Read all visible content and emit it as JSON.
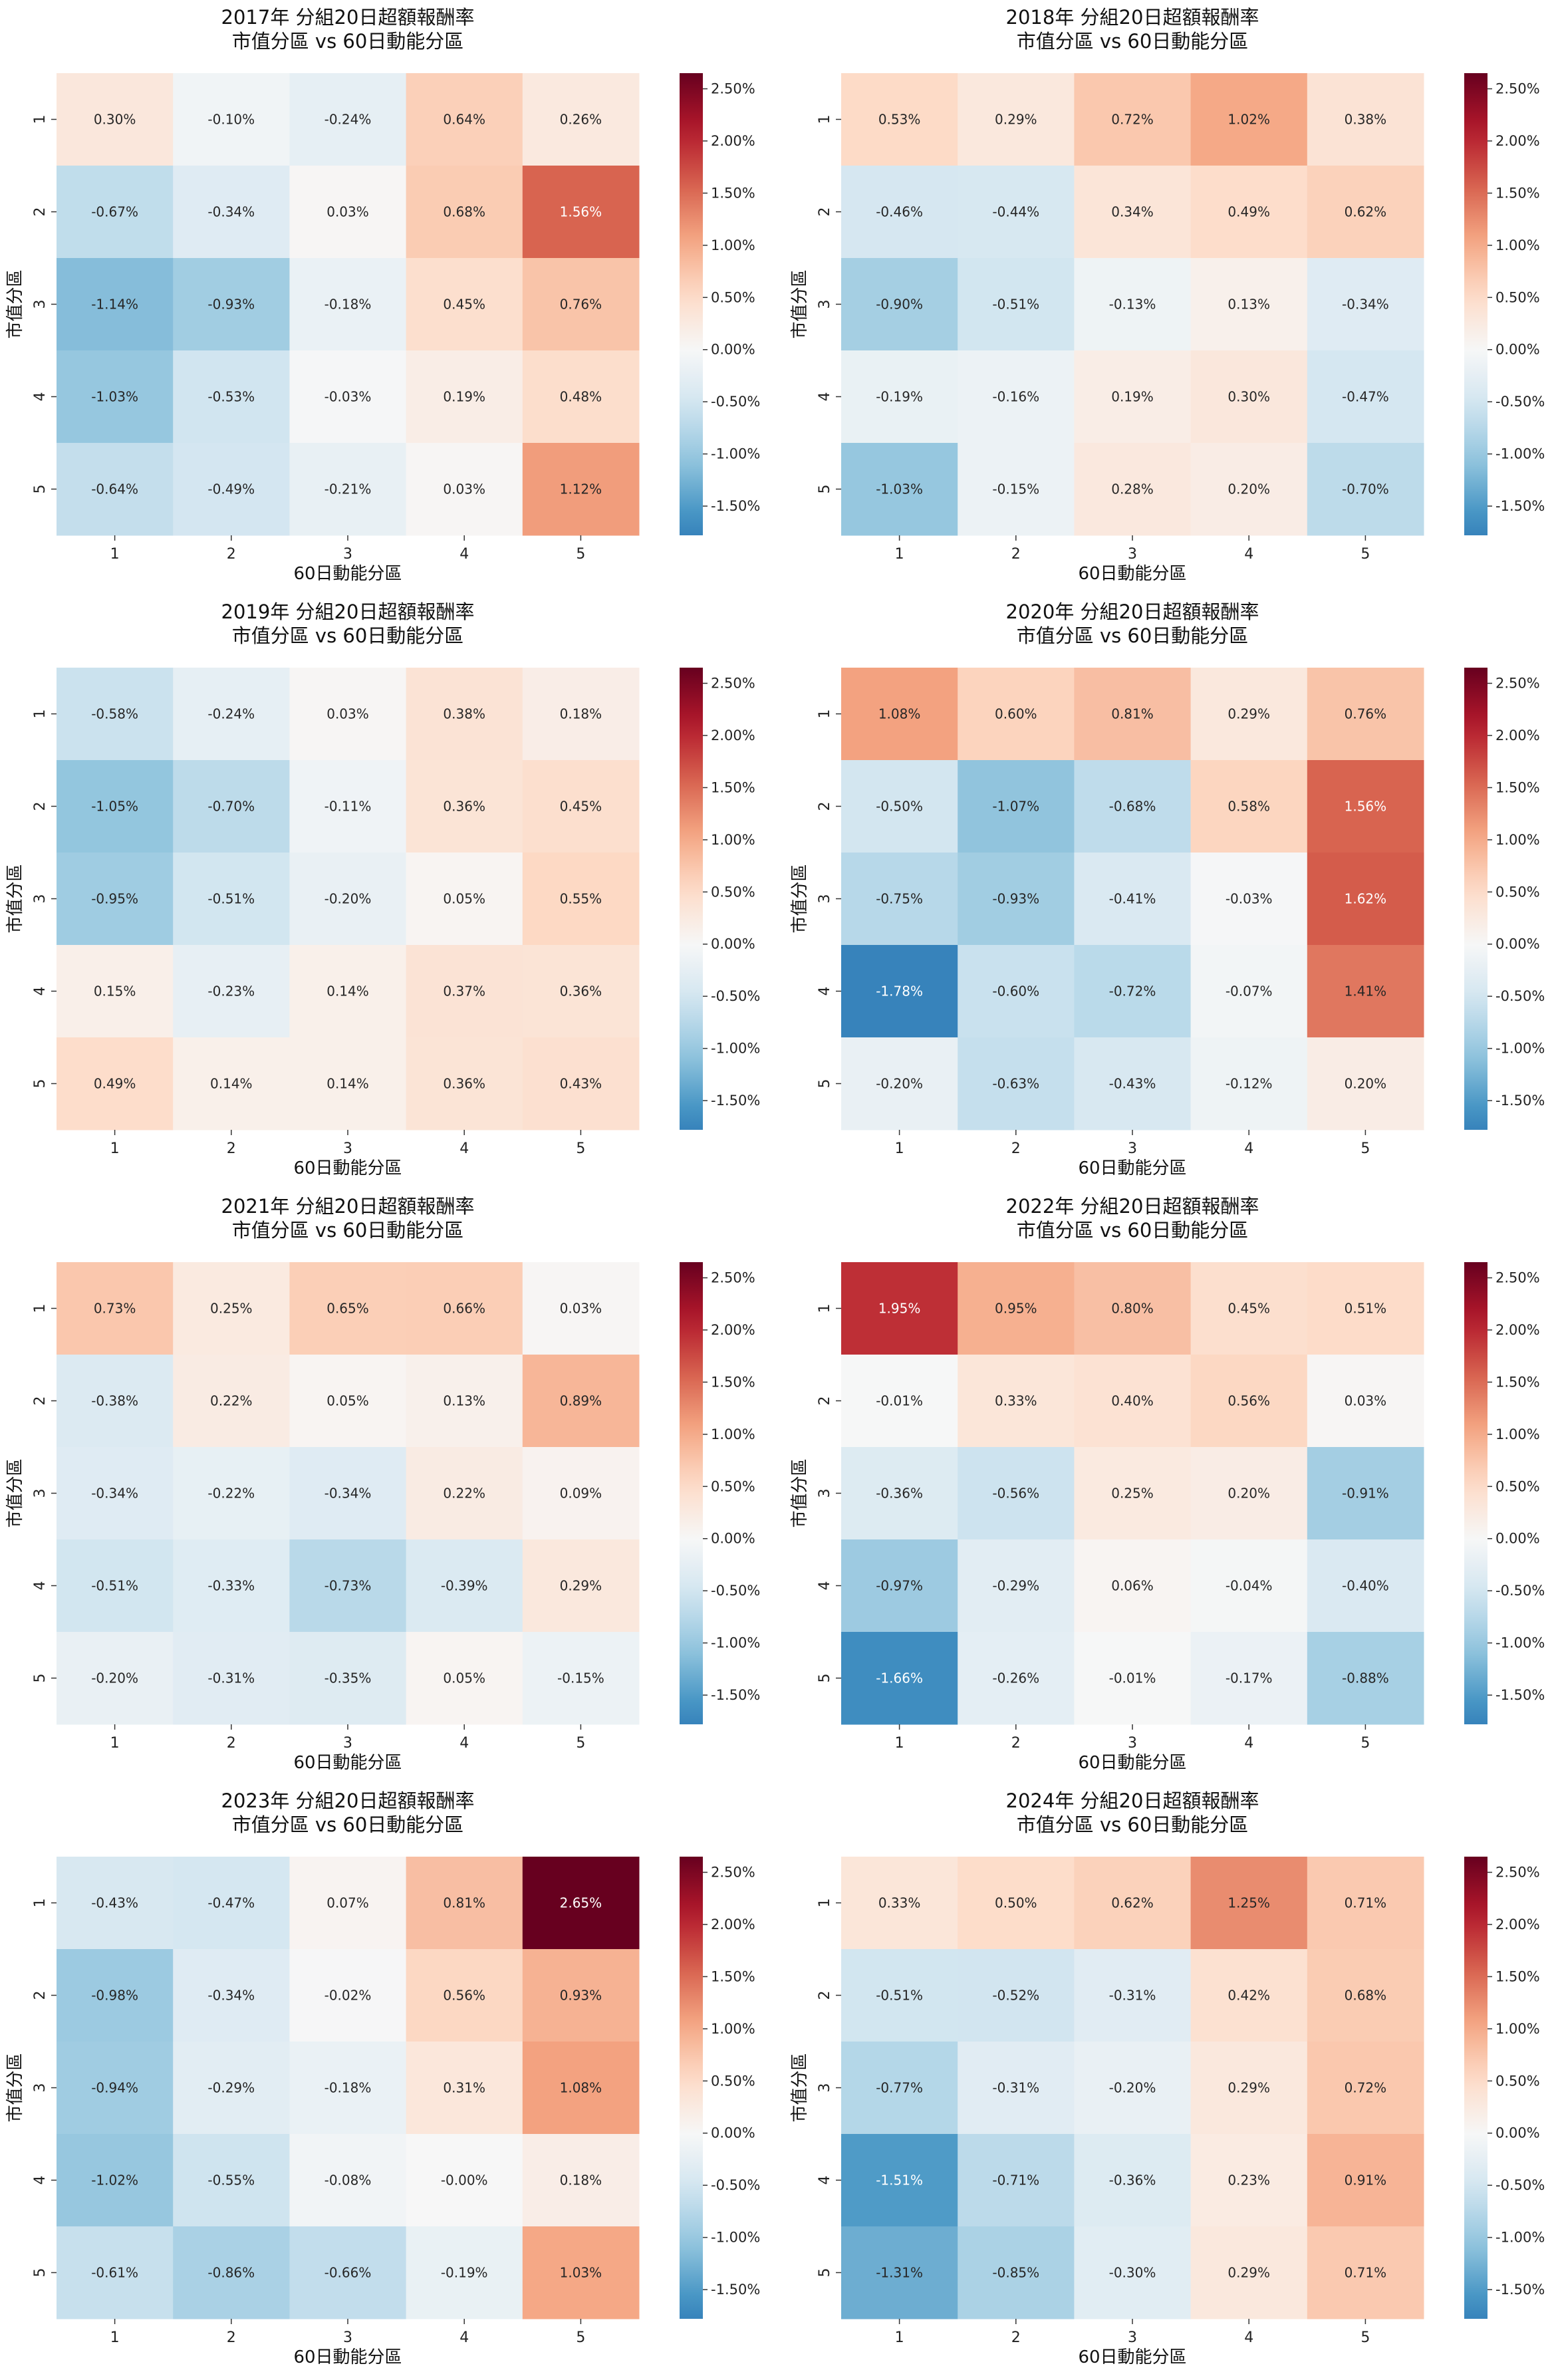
{
  "figure": {
    "xlabel": "60日動能分區",
    "ylabel": "市值分區",
    "x_ticks": [
      "1",
      "2",
      "3",
      "4",
      "5"
    ],
    "y_ticks": [
      "1",
      "2",
      "3",
      "4",
      "5"
    ],
    "colorbar": {
      "cmap": "RdBu_r",
      "vmin": -1.78,
      "vmax": 2.65,
      "center": 0,
      "ticks": [
        2.5,
        2.0,
        1.5,
        1.0,
        0.5,
        0.0,
        -0.5,
        -1.0,
        -1.5
      ],
      "tick_labels": [
        "2.50%",
        "2.00%",
        "1.50%",
        "1.00%",
        "0.50%",
        "0.00%",
        "-0.50%",
        "-1.00%",
        "-1.50%"
      ]
    }
  },
  "chart_data": [
    {
      "type": "heatmap",
      "title": "2017年 分組20日超額報酬率",
      "subtitle": "市值分區 vs 60日動能分區",
      "values": [
        [
          0.3,
          -0.1,
          -0.24,
          0.64,
          0.26
        ],
        [
          -0.67,
          -0.34,
          0.03,
          0.68,
          1.56
        ],
        [
          -1.14,
          -0.93,
          -0.18,
          0.45,
          0.76
        ],
        [
          -1.03,
          -0.53,
          -0.03,
          0.19,
          0.48
        ],
        [
          -0.64,
          -0.49,
          -0.21,
          0.03,
          1.12
        ]
      ],
      "labels": [
        [
          "0.30%",
          "-0.10%",
          "-0.24%",
          "0.64%",
          "0.26%"
        ],
        [
          "-0.67%",
          "-0.34%",
          "0.03%",
          "0.68%",
          "1.56%"
        ],
        [
          "-1.14%",
          "-0.93%",
          "-0.18%",
          "0.45%",
          "0.76%"
        ],
        [
          "-1.03%",
          "-0.53%",
          "-0.03%",
          "0.19%",
          "0.48%"
        ],
        [
          "-0.64%",
          "-0.49%",
          "-0.21%",
          "0.03%",
          "1.12%"
        ]
      ]
    },
    {
      "type": "heatmap",
      "title": "2018年 分組20日超額報酬率",
      "subtitle": "市值分區 vs 60日動能分區",
      "values": [
        [
          0.53,
          0.29,
          0.72,
          1.02,
          0.38
        ],
        [
          -0.46,
          -0.44,
          0.34,
          0.49,
          0.62
        ],
        [
          -0.9,
          -0.51,
          -0.13,
          0.13,
          -0.34
        ],
        [
          -0.19,
          -0.16,
          0.19,
          0.3,
          -0.47
        ],
        [
          -1.03,
          -0.15,
          0.28,
          0.2,
          -0.7
        ]
      ],
      "labels": [
        [
          "0.53%",
          "0.29%",
          "0.72%",
          "1.02%",
          "0.38%"
        ],
        [
          "-0.46%",
          "-0.44%",
          "0.34%",
          "0.49%",
          "0.62%"
        ],
        [
          "-0.90%",
          "-0.51%",
          "-0.13%",
          "0.13%",
          "-0.34%"
        ],
        [
          "-0.19%",
          "-0.16%",
          "0.19%",
          "0.30%",
          "-0.47%"
        ],
        [
          "-1.03%",
          "-0.15%",
          "0.28%",
          "0.20%",
          "-0.70%"
        ]
      ]
    },
    {
      "type": "heatmap",
      "title": "2019年 分組20日超額報酬率",
      "subtitle": "市值分區 vs 60日動能分區",
      "values": [
        [
          -0.58,
          -0.24,
          0.03,
          0.38,
          0.18
        ],
        [
          -1.05,
          -0.7,
          -0.11,
          0.36,
          0.45
        ],
        [
          -0.95,
          -0.51,
          -0.2,
          0.05,
          0.55
        ],
        [
          0.15,
          -0.23,
          0.14,
          0.37,
          0.36
        ],
        [
          0.49,
          0.14,
          0.14,
          0.36,
          0.43
        ]
      ],
      "labels": [
        [
          "-0.58%",
          "-0.24%",
          "0.03%",
          "0.38%",
          "0.18%"
        ],
        [
          "-1.05%",
          "-0.70%",
          "-0.11%",
          "0.36%",
          "0.45%"
        ],
        [
          "-0.95%",
          "-0.51%",
          "-0.20%",
          "0.05%",
          "0.55%"
        ],
        [
          "0.15%",
          "-0.23%",
          "0.14%",
          "0.37%",
          "0.36%"
        ],
        [
          "0.49%",
          "0.14%",
          "0.14%",
          "0.36%",
          "0.43%"
        ]
      ]
    },
    {
      "type": "heatmap",
      "title": "2020年 分組20日超額報酬率",
      "subtitle": "市值分區 vs 60日動能分區",
      "values": [
        [
          1.08,
          0.6,
          0.81,
          0.29,
          0.76
        ],
        [
          -0.5,
          -1.07,
          -0.68,
          0.58,
          1.56
        ],
        [
          -0.75,
          -0.93,
          -0.41,
          -0.03,
          1.62
        ],
        [
          -1.78,
          -0.6,
          -0.72,
          -0.07,
          1.41
        ],
        [
          -0.2,
          -0.63,
          -0.43,
          -0.12,
          0.2
        ]
      ],
      "labels": [
        [
          "1.08%",
          "0.60%",
          "0.81%",
          "0.29%",
          "0.76%"
        ],
        [
          "-0.50%",
          "-1.07%",
          "-0.68%",
          "0.58%",
          "1.56%"
        ],
        [
          "-0.75%",
          "-0.93%",
          "-0.41%",
          "-0.03%",
          "1.62%"
        ],
        [
          "-1.78%",
          "-0.60%",
          "-0.72%",
          "-0.07%",
          "1.41%"
        ],
        [
          "-0.20%",
          "-0.63%",
          "-0.43%",
          "-0.12%",
          "0.20%"
        ]
      ]
    },
    {
      "type": "heatmap",
      "title": "2021年 分組20日超額報酬率",
      "subtitle": "市值分區 vs 60日動能分區",
      "values": [
        [
          0.73,
          0.25,
          0.65,
          0.66,
          0.03
        ],
        [
          -0.38,
          0.22,
          0.05,
          0.13,
          0.89
        ],
        [
          -0.34,
          -0.22,
          -0.34,
          0.22,
          0.09
        ],
        [
          -0.51,
          -0.33,
          -0.73,
          -0.39,
          0.29
        ],
        [
          -0.2,
          -0.31,
          -0.35,
          0.05,
          -0.15
        ]
      ],
      "labels": [
        [
          "0.73%",
          "0.25%",
          "0.65%",
          "0.66%",
          "0.03%"
        ],
        [
          "-0.38%",
          "0.22%",
          "0.05%",
          "0.13%",
          "0.89%"
        ],
        [
          "-0.34%",
          "-0.22%",
          "-0.34%",
          "0.22%",
          "0.09%"
        ],
        [
          "-0.51%",
          "-0.33%",
          "-0.73%",
          "-0.39%",
          "0.29%"
        ],
        [
          "-0.20%",
          "-0.31%",
          "-0.35%",
          "0.05%",
          "-0.15%"
        ]
      ]
    },
    {
      "type": "heatmap",
      "title": "2022年 分組20日超額報酬率",
      "subtitle": "市值分區 vs 60日動能分區",
      "values": [
        [
          1.95,
          0.95,
          0.8,
          0.45,
          0.51
        ],
        [
          -0.01,
          0.33,
          0.4,
          0.56,
          0.03
        ],
        [
          -0.36,
          -0.56,
          0.25,
          0.2,
          -0.91
        ],
        [
          -0.97,
          -0.29,
          0.06,
          -0.04,
          -0.4
        ],
        [
          -1.66,
          -0.26,
          -0.01,
          -0.17,
          -0.88
        ]
      ],
      "labels": [
        [
          "1.95%",
          "0.95%",
          "0.80%",
          "0.45%",
          "0.51%"
        ],
        [
          "-0.01%",
          "0.33%",
          "0.40%",
          "0.56%",
          "0.03%"
        ],
        [
          "-0.36%",
          "-0.56%",
          "0.25%",
          "0.20%",
          "-0.91%"
        ],
        [
          "-0.97%",
          "-0.29%",
          "0.06%",
          "-0.04%",
          "-0.40%"
        ],
        [
          "-1.66%",
          "-0.26%",
          "-0.01%",
          "-0.17%",
          "-0.88%"
        ]
      ]
    },
    {
      "type": "heatmap",
      "title": "2023年 分組20日超額報酬率",
      "subtitle": "市值分區 vs 60日動能分區",
      "values": [
        [
          -0.43,
          -0.47,
          0.07,
          0.81,
          2.65
        ],
        [
          -0.98,
          -0.34,
          -0.02,
          0.56,
          0.93
        ],
        [
          -0.94,
          -0.29,
          -0.18,
          0.31,
          1.08
        ],
        [
          -1.02,
          -0.55,
          -0.08,
          -0.0,
          0.18
        ],
        [
          -0.61,
          -0.86,
          -0.66,
          -0.19,
          1.03
        ]
      ],
      "labels": [
        [
          "-0.43%",
          "-0.47%",
          "0.07%",
          "0.81%",
          "2.65%"
        ],
        [
          "-0.98%",
          "-0.34%",
          "-0.02%",
          "0.56%",
          "0.93%"
        ],
        [
          "-0.94%",
          "-0.29%",
          "-0.18%",
          "0.31%",
          "1.08%"
        ],
        [
          "-1.02%",
          "-0.55%",
          "-0.08%",
          "-0.00%",
          "0.18%"
        ],
        [
          "-0.61%",
          "-0.86%",
          "-0.66%",
          "-0.19%",
          "1.03%"
        ]
      ]
    },
    {
      "type": "heatmap",
      "title": "2024年 分組20日超額報酬率",
      "subtitle": "市值分區 vs 60日動能分區",
      "values": [
        [
          0.33,
          0.5,
          0.62,
          1.25,
          0.71
        ],
        [
          -0.51,
          -0.52,
          -0.31,
          0.42,
          0.68
        ],
        [
          -0.77,
          -0.31,
          -0.2,
          0.29,
          0.72
        ],
        [
          -1.51,
          -0.71,
          -0.36,
          0.23,
          0.91
        ],
        [
          -1.31,
          -0.85,
          -0.3,
          0.29,
          0.71
        ]
      ],
      "labels": [
        [
          "0.33%",
          "0.50%",
          "0.62%",
          "1.25%",
          "0.71%"
        ],
        [
          "-0.51%",
          "-0.52%",
          "-0.31%",
          "0.42%",
          "0.68%"
        ],
        [
          "-0.77%",
          "-0.31%",
          "-0.20%",
          "0.29%",
          "0.72%"
        ],
        [
          "-1.51%",
          "-0.71%",
          "-0.36%",
          "0.23%",
          "0.91%"
        ],
        [
          "-1.31%",
          "-0.85%",
          "-0.30%",
          "0.29%",
          "0.71%"
        ]
      ]
    }
  ]
}
